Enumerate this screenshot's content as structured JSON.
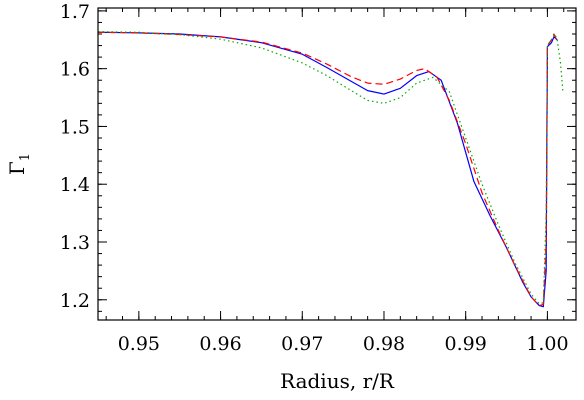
{
  "chart_data": {
    "type": "line",
    "xlabel": "Radius, r/R",
    "ylabel": "Γ",
    "ylabel_subscript": "1",
    "xlim": [
      0.945,
      1.0035
    ],
    "ylim": [
      1.165,
      1.705
    ],
    "x_ticks": [
      {
        "value": 0.95,
        "label": "0.95"
      },
      {
        "value": 0.96,
        "label": "0.96"
      },
      {
        "value": 0.97,
        "label": "0.97"
      },
      {
        "value": 0.98,
        "label": "0.98"
      },
      {
        "value": 0.99,
        "label": "0.99"
      },
      {
        "value": 1.0,
        "label": "1.00"
      }
    ],
    "y_ticks": [
      {
        "value": 1.2,
        "label": "1.2"
      },
      {
        "value": 1.3,
        "label": "1.3"
      },
      {
        "value": 1.4,
        "label": "1.4"
      },
      {
        "value": 1.5,
        "label": "1.5"
      },
      {
        "value": 1.6,
        "label": "1.6"
      },
      {
        "value": 1.7,
        "label": "1.7"
      }
    ],
    "x_minor_step": 0.002,
    "y_minor_step": 0.02,
    "series": [
      {
        "style": "solid",
        "color": "#0000ff",
        "points": [
          [
            0.945,
            1.663
          ],
          [
            0.95,
            1.662
          ],
          [
            0.955,
            1.66
          ],
          [
            0.96,
            1.655
          ],
          [
            0.965,
            1.645
          ],
          [
            0.97,
            1.625
          ],
          [
            0.973,
            1.602
          ],
          [
            0.976,
            1.578
          ],
          [
            0.978,
            1.562
          ],
          [
            0.98,
            1.556
          ],
          [
            0.982,
            1.566
          ],
          [
            0.984,
            1.588
          ],
          [
            0.9855,
            1.595
          ],
          [
            0.987,
            1.58
          ],
          [
            0.989,
            1.505
          ],
          [
            0.991,
            1.405
          ],
          [
            0.993,
            1.345
          ],
          [
            0.995,
            1.29
          ],
          [
            0.997,
            1.23
          ],
          [
            0.998,
            1.205
          ],
          [
            0.999,
            1.19
          ],
          [
            0.9995,
            1.188
          ],
          [
            0.99985,
            1.25
          ],
          [
            1.0,
            1.638
          ],
          [
            1.0005,
            1.645
          ],
          [
            1.0008,
            1.655
          ],
          [
            1.0012,
            1.65
          ]
        ]
      },
      {
        "style": "dashed",
        "color": "#ff0000",
        "points": [
          [
            0.945,
            1.663
          ],
          [
            0.95,
            1.662
          ],
          [
            0.955,
            1.659
          ],
          [
            0.96,
            1.655
          ],
          [
            0.965,
            1.646
          ],
          [
            0.97,
            1.627
          ],
          [
            0.973,
            1.608
          ],
          [
            0.976,
            1.586
          ],
          [
            0.978,
            1.575
          ],
          [
            0.98,
            1.573
          ],
          [
            0.982,
            1.582
          ],
          [
            0.984,
            1.597
          ],
          [
            0.985,
            1.6
          ],
          [
            0.9865,
            1.585
          ],
          [
            0.988,
            1.545
          ],
          [
            0.99,
            1.47
          ],
          [
            0.992,
            1.385
          ],
          [
            0.994,
            1.32
          ],
          [
            0.996,
            1.26
          ],
          [
            0.998,
            1.205
          ],
          [
            0.999,
            1.19
          ],
          [
            0.9995,
            1.192
          ],
          [
            0.99985,
            1.3
          ],
          [
            1.0,
            1.64
          ],
          [
            1.0005,
            1.65
          ],
          [
            1.0008,
            1.66
          ],
          [
            1.0012,
            1.648
          ]
        ]
      },
      {
        "style": "dotted",
        "color": "#00aa00",
        "points": [
          [
            0.945,
            1.664
          ],
          [
            0.95,
            1.663
          ],
          [
            0.955,
            1.659
          ],
          [
            0.96,
            1.651
          ],
          [
            0.965,
            1.636
          ],
          [
            0.97,
            1.61
          ],
          [
            0.973,
            1.588
          ],
          [
            0.976,
            1.562
          ],
          [
            0.978,
            1.545
          ],
          [
            0.98,
            1.54
          ],
          [
            0.982,
            1.55
          ],
          [
            0.984,
            1.575
          ],
          [
            0.986,
            1.585
          ],
          [
            0.988,
            1.56
          ],
          [
            0.99,
            1.48
          ],
          [
            0.992,
            1.4
          ],
          [
            0.994,
            1.33
          ],
          [
            0.996,
            1.265
          ],
          [
            0.998,
            1.21
          ],
          [
            0.999,
            1.193
          ],
          [
            0.9995,
            1.195
          ],
          [
            0.99985,
            1.35
          ],
          [
            1.0,
            1.64
          ],
          [
            1.0005,
            1.65
          ],
          [
            1.0009,
            1.66
          ],
          [
            1.0012,
            1.65
          ],
          [
            1.0016,
            1.61
          ],
          [
            1.0019,
            1.56
          ]
        ]
      }
    ]
  }
}
